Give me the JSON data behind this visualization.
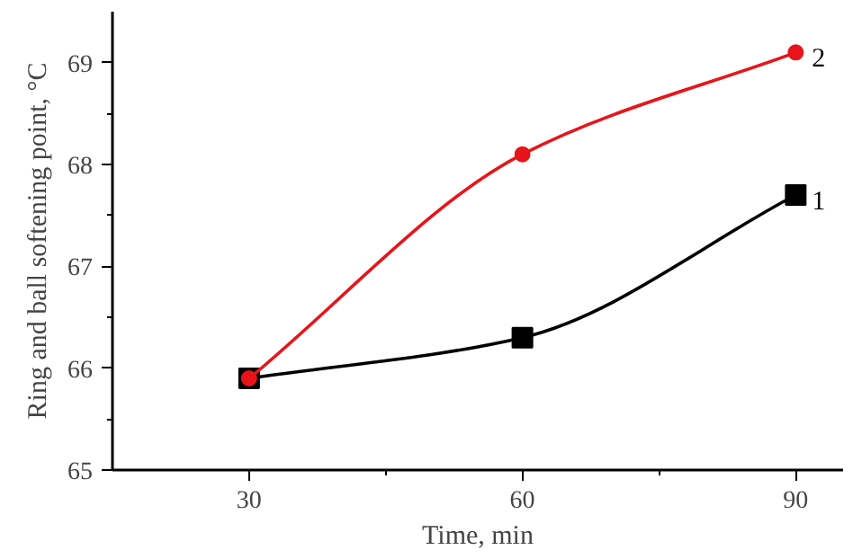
{
  "chart_data": {
    "type": "line",
    "xlabel": "Time, min",
    "ylabel": "Ring and ball softening point, °C",
    "x": [
      30,
      60,
      90
    ],
    "xlim": [
      15,
      95.2
    ],
    "ylim": [
      65,
      69.5
    ],
    "xticks": [
      30,
      {
        "value": 45,
        "label": null
      },
      60,
      {
        "value": 75,
        "label": null
      },
      90
    ],
    "yticks": [
      65,
      {
        "value": 65.5,
        "label": null
      },
      66,
      {
        "value": 66.5,
        "label": null
      },
      67,
      {
        "value": 67.5,
        "label": null
      },
      68,
      {
        "value": 68.5,
        "label": null
      },
      69
    ],
    "series": [
      {
        "name": "1",
        "color": "#000000",
        "marker": "square",
        "values": [
          65.9,
          66.3,
          67.7
        ]
      },
      {
        "name": "2",
        "color": "#e8141a",
        "marker": "circle",
        "values": [
          65.9,
          68.1,
          69.1
        ]
      }
    ],
    "grid": false
  }
}
